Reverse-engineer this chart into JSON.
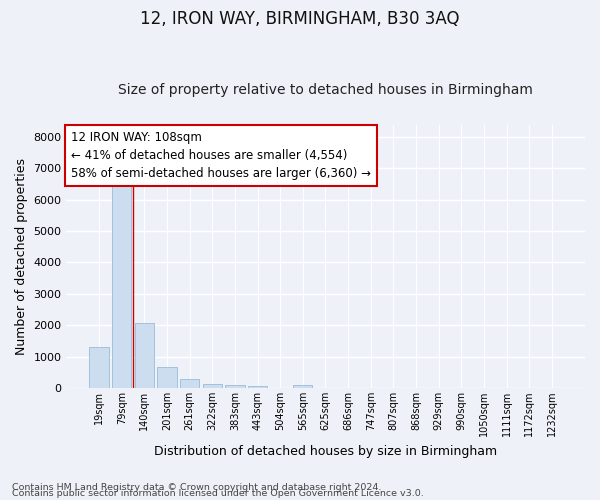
{
  "title": "12, IRON WAY, BIRMINGHAM, B30 3AQ",
  "subtitle": "Size of property relative to detached houses in Birmingham",
  "xlabel": "Distribution of detached houses by size in Birmingham",
  "ylabel": "Number of detached properties",
  "footnote1": "Contains HM Land Registry data © Crown copyright and database right 2024.",
  "footnote2": "Contains public sector information licensed under the Open Government Licence v3.0.",
  "categories": [
    "19sqm",
    "79sqm",
    "140sqm",
    "201sqm",
    "261sqm",
    "322sqm",
    "383sqm",
    "443sqm",
    "504sqm",
    "565sqm",
    "625sqm",
    "686sqm",
    "747sqm",
    "807sqm",
    "868sqm",
    "929sqm",
    "990sqm",
    "1050sqm",
    "1111sqm",
    "1172sqm",
    "1232sqm"
  ],
  "values": [
    1320,
    6580,
    2080,
    680,
    290,
    125,
    80,
    55,
    0,
    95,
    0,
    0,
    0,
    0,
    0,
    0,
    0,
    0,
    0,
    0,
    0
  ],
  "bar_color": "#ccddf0",
  "bar_edge_color": "#9bbbd8",
  "vline_x_index": 1.5,
  "vline_color": "#cc0000",
  "annotation_text": "12 IRON WAY: 108sqm\n← 41% of detached houses are smaller (4,554)\n58% of semi-detached houses are larger (6,360) →",
  "annotation_box_facecolor": "#ffffff",
  "annotation_box_edgecolor": "#cc0000",
  "ylim": [
    0,
    8400
  ],
  "yticks": [
    0,
    1000,
    2000,
    3000,
    4000,
    5000,
    6000,
    7000,
    8000
  ],
  "background_color": "#eef2f8",
  "grid_color": "#ffffff",
  "title_fontsize": 12,
  "subtitle_fontsize": 10,
  "ylabel_fontsize": 9,
  "xlabel_fontsize": 9,
  "tick_fontsize": 8,
  "annot_fontsize": 8.5,
  "footnote_fontsize": 6.8
}
